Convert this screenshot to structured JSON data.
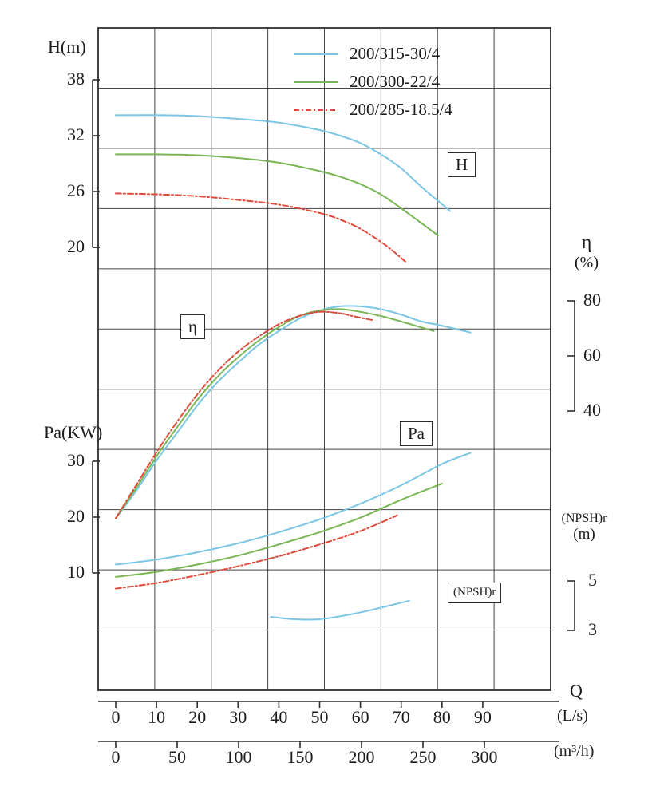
{
  "legend": {
    "items": [
      {
        "label": "200/315-30/4",
        "color": "#7bc6e4",
        "dash": null
      },
      {
        "label": "200/300-22/4",
        "color": "#79b654",
        "dash": null
      },
      {
        "label": "200/285-18.5/4",
        "color": "#de4a3c",
        "dash": "7 3 2 3"
      }
    ]
  },
  "axes": {
    "h": {
      "title": "H(m)",
      "ticks": [
        38,
        32,
        26,
        20
      ]
    },
    "pa": {
      "title": "Pa(KW)",
      "ticks": [
        30,
        20,
        10
      ]
    },
    "eta": {
      "title": "η",
      "unit": "(%)",
      "ticks": [
        80,
        60,
        40
      ]
    },
    "npsh": {
      "title": "(NPSH)r",
      "unit": "(m)",
      "ticks": [
        5,
        3
      ]
    },
    "q": {
      "title": "Q",
      "ls": {
        "unit": "(L/s)",
        "ticks": [
          0,
          10,
          20,
          30,
          40,
          50,
          60,
          70,
          80,
          90
        ]
      },
      "m3h": {
        "unit": "(m³/h)",
        "ticks": [
          0,
          50,
          100,
          150,
          200,
          250,
          300
        ]
      }
    }
  },
  "inline_labels": {
    "h": "H",
    "eta": "η",
    "pa": "Pa",
    "npsh": "(NPSH)r"
  },
  "chart_data": {
    "type": "line",
    "x": {
      "label": "Q",
      "unit": "L/s",
      "range": [
        0,
        90
      ],
      "secondary_unit": "m³/h",
      "secondary_range": [
        0,
        300
      ]
    },
    "grid": true,
    "legend_position": "top-center",
    "families": [
      {
        "id": "H",
        "ylabel": "H (m)",
        "ylim": [
          18,
          38
        ],
        "axis_side": "left",
        "series": [
          {
            "name": "200/315-30/4",
            "color": "#7bc6e4",
            "dash": null,
            "points": [
              [
                0,
                34.2
              ],
              [
                10,
                34.2
              ],
              [
                20,
                34.1
              ],
              [
                30,
                33.8
              ],
              [
                40,
                33.4
              ],
              [
                50,
                32.6
              ],
              [
                55,
                32.0
              ],
              [
                60,
                31.2
              ],
              [
                65,
                30.0
              ],
              [
                70,
                28.5
              ],
              [
                75,
                26.5
              ],
              [
                82,
                23.9
              ]
            ]
          },
          {
            "name": "200/300-22/4",
            "color": "#79b654",
            "dash": null,
            "points": [
              [
                0,
                30.0
              ],
              [
                10,
                30.0
              ],
              [
                20,
                29.9
              ],
              [
                30,
                29.6
              ],
              [
                40,
                29.1
              ],
              [
                50,
                28.2
              ],
              [
                55,
                27.6
              ],
              [
                60,
                26.8
              ],
              [
                65,
                25.7
              ],
              [
                70,
                24.2
              ],
              [
                79,
                21.3
              ]
            ]
          },
          {
            "name": "200/285-18.5/4",
            "color": "#de4a3c",
            "dash": "7 3 2 3",
            "points": [
              [
                0,
                25.8
              ],
              [
                10,
                25.7
              ],
              [
                20,
                25.5
              ],
              [
                30,
                25.1
              ],
              [
                40,
                24.6
              ],
              [
                50,
                23.7
              ],
              [
                55,
                23.0
              ],
              [
                60,
                22.0
              ],
              [
                66,
                20.3
              ],
              [
                71,
                18.5
              ]
            ]
          }
        ]
      },
      {
        "id": "eta",
        "ylabel": "η (%)",
        "ylim": [
          40,
          80
        ],
        "axis_side": "right",
        "series": [
          {
            "name": "200/315-30/4",
            "color": "#7bc6e4",
            "dash": null,
            "points": [
              [
                0,
                1
              ],
              [
                5,
                11
              ],
              [
                10,
                22
              ],
              [
                15,
                32
              ],
              [
                20,
                42
              ],
              [
                25,
                50.5
              ],
              [
                30,
                57.5
              ],
              [
                35,
                64
              ],
              [
                40,
                69
              ],
              [
                45,
                73.5
              ],
              [
                50,
                76.5
              ],
              [
                55,
                78
              ],
              [
                60,
                78
              ],
              [
                65,
                77
              ],
              [
                70,
                75
              ],
              [
                75,
                72.5
              ],
              [
                80,
                71
              ],
              [
                87,
                68.5
              ]
            ]
          },
          {
            "name": "200/300-22/4",
            "color": "#79b654",
            "dash": null,
            "points": [
              [
                0,
                1
              ],
              [
                5,
                12
              ],
              [
                10,
                23.5
              ],
              [
                15,
                34
              ],
              [
                20,
                44
              ],
              [
                25,
                52.5
              ],
              [
                30,
                59.5
              ],
              [
                35,
                65.5
              ],
              [
                40,
                70.5
              ],
              [
                45,
                74.5
              ],
              [
                50,
                76.5
              ],
              [
                55,
                77
              ],
              [
                60,
                76
              ],
              [
                65,
                74.5
              ],
              [
                70,
                72.5
              ],
              [
                78,
                69
              ]
            ]
          },
          {
            "name": "200/285-18.5/4",
            "color": "#de4a3c",
            "dash": "7 3 2 3",
            "points": [
              [
                0,
                1
              ],
              [
                5,
                13
              ],
              [
                10,
                25
              ],
              [
                15,
                36
              ],
              [
                20,
                46
              ],
              [
                25,
                54.5
              ],
              [
                30,
                61.5
              ],
              [
                35,
                67
              ],
              [
                40,
                71.5
              ],
              [
                45,
                74.5
              ],
              [
                50,
                76
              ],
              [
                55,
                75.5
              ],
              [
                58,
                74.5
              ],
              [
                63,
                73
              ]
            ]
          }
        ]
      },
      {
        "id": "Pa",
        "ylabel": "Pa (KW)",
        "ylim": [
          5,
          33
        ],
        "axis_side": "left",
        "series": [
          {
            "name": "200/315-30/4",
            "color": "#7bc6e4",
            "dash": null,
            "points": [
              [
                0,
                11.5
              ],
              [
                10,
                12.4
              ],
              [
                20,
                13.7
              ],
              [
                30,
                15.3
              ],
              [
                40,
                17.3
              ],
              [
                50,
                19.6
              ],
              [
                60,
                22.4
              ],
              [
                70,
                25.7
              ],
              [
                80,
                29.5
              ],
              [
                87,
                31.5
              ]
            ]
          },
          {
            "name": "200/300-22/4",
            "color": "#79b654",
            "dash": null,
            "points": [
              [
                0,
                9.3
              ],
              [
                10,
                10.2
              ],
              [
                20,
                11.5
              ],
              [
                30,
                13.1
              ],
              [
                40,
                15.1
              ],
              [
                50,
                17.3
              ],
              [
                60,
                19.9
              ],
              [
                70,
                23.1
              ],
              [
                80,
                26.0
              ]
            ]
          },
          {
            "name": "200/285-18.5/4",
            "color": "#de4a3c",
            "dash": "7 3 2 3",
            "points": [
              [
                0,
                7.2
              ],
              [
                10,
                8.2
              ],
              [
                20,
                9.6
              ],
              [
                30,
                11.2
              ],
              [
                40,
                13.0
              ],
              [
                50,
                15.1
              ],
              [
                60,
                17.5
              ],
              [
                69,
                20.3
              ]
            ]
          }
        ]
      },
      {
        "id": "NPSHr",
        "ylabel": "(NPSH)r (m)",
        "ylim": [
          3,
          5
        ],
        "axis_side": "right",
        "series": [
          {
            "name": "200/315-30/4",
            "color": "#7bc6e4",
            "dash": null,
            "points": [
              [
                38,
                3.55
              ],
              [
                44,
                3.45
              ],
              [
                50,
                3.45
              ],
              [
                56,
                3.6
              ],
              [
                62,
                3.8
              ],
              [
                67,
                4.0
              ],
              [
                72,
                4.2
              ]
            ]
          }
        ]
      }
    ]
  }
}
